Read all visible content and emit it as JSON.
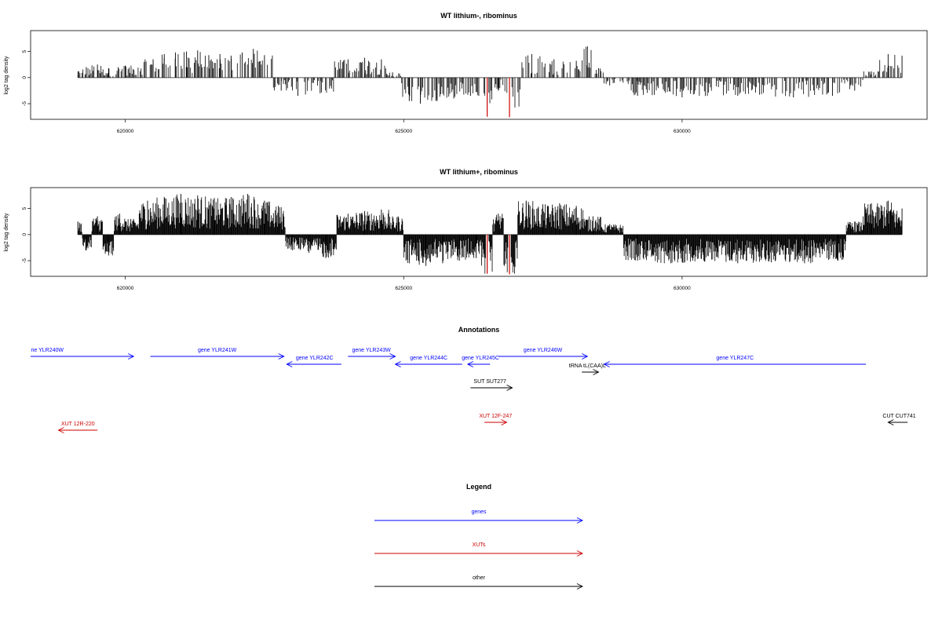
{
  "chart_data": [
    {
      "type": "bar",
      "title": "WT lithium-, ribominus",
      "xlabel": "",
      "ylabel": "log2 tag density",
      "xlim": [
        618300,
        634400
      ],
      "ylim": [
        -8,
        9
      ],
      "x_ticks": [
        620000,
        625000,
        630000
      ],
      "x_tick_labels": [
        "620000",
        "625000",
        "630000"
      ],
      "y_ticks": [
        -5,
        0,
        5
      ],
      "y_tick_labels": [
        "-5",
        "0",
        "5"
      ],
      "highlight_color": "#cc0000",
      "series": [
        {
          "x": [
            619150,
            619300,
            619500,
            619700,
            620000,
            620500,
            620700,
            620900,
            621100,
            621300,
            621500,
            621700,
            621900,
            622100,
            622300,
            622500,
            622800,
            623100,
            623500,
            624000,
            624300,
            624600,
            624800,
            625100,
            625300,
            625600,
            625900,
            626200,
            626500,
            626700,
            626900,
            627300,
            627700,
            628100,
            628300,
            628500,
            628700,
            629200,
            630000,
            631000,
            632000,
            632700,
            633100,
            633400,
            633700,
            633950
          ],
          "values": [
            1.2,
            2.0,
            2.5,
            1.8,
            2.3,
            3.5,
            4.5,
            4.8,
            5.0,
            5.2,
            4.3,
            4.5,
            4.2,
            4.8,
            5.5,
            4.3,
            -2.5,
            -3.5,
            -3.0,
            3.5,
            3.8,
            3.5,
            1.0,
            -4.5,
            -5.0,
            -4.5,
            -4.0,
            -3.5,
            -7.5,
            -2.5,
            -7.6,
            4.5,
            3.5,
            3.2,
            6.0,
            1.8,
            -1.5,
            -3.5,
            -3.8,
            -3.5,
            -3.8,
            -3.5,
            -2.5,
            1.2,
            4.5,
            4.2
          ],
          "highlight_x": [
            626500,
            626900
          ]
        }
      ]
    },
    {
      "type": "bar",
      "title": "WT lithium+, ribominus",
      "xlabel": "",
      "ylabel": "log2 tag density",
      "xlim": [
        618300,
        634400
      ],
      "ylim": [
        -8,
        9
      ],
      "x_ticks": [
        620000,
        625000,
        630000
      ],
      "x_tick_labels": [
        "620000",
        "625000",
        "630000"
      ],
      "y_ticks": [
        -5,
        0,
        5
      ],
      "y_tick_labels": [
        "-5",
        "0",
        "5"
      ],
      "highlight_color": "#cc0000",
      "series": [
        {
          "x": [
            619150,
            619300,
            619500,
            619700,
            619900,
            620100,
            620400,
            620700,
            621000,
            621300,
            621600,
            621900,
            622200,
            622500,
            622750,
            623000,
            623300,
            623600,
            624000,
            624300,
            624600,
            624900,
            625100,
            625400,
            625700,
            626000,
            626300,
            626500,
            626700,
            626900,
            627200,
            627500,
            627800,
            628100,
            628400,
            628700,
            629200,
            629800,
            630400,
            631000,
            631600,
            632200,
            632800,
            633100,
            633400,
            633700,
            633950
          ],
          "values": [
            2.5,
            -3.0,
            3.5,
            -4.0,
            4.0,
            3.0,
            6.5,
            7.2,
            7.8,
            7.5,
            7.0,
            7.2,
            7.8,
            6.5,
            5.5,
            -3.0,
            -3.5,
            -4.5,
            4.0,
            4.5,
            4.8,
            3.5,
            -5.5,
            -6.0,
            -5.5,
            -5.0,
            -4.5,
            -7.5,
            4.0,
            -7.6,
            6.5,
            5.8,
            6.0,
            5.5,
            3.5,
            2.0,
            -5.0,
            -5.5,
            -5.2,
            -5.5,
            -5.3,
            -5.5,
            -5.0,
            2.5,
            6.0,
            6.5,
            5.0
          ],
          "highlight_x": [
            626500,
            626900
          ]
        }
      ]
    }
  ],
  "annotations": {
    "title": "Annotations",
    "xlim": [
      618300,
      634400
    ],
    "features": [
      {
        "label": "ne YLR240W",
        "start": 618300,
        "end": 620150,
        "strand": "+",
        "row": 0,
        "color": "#0000ff",
        "label_x": 618600
      },
      {
        "label": "gene YLR241W",
        "start": 620450,
        "end": 622850,
        "strand": "+",
        "row": 0,
        "color": "#0000ff",
        "label_x": 621650
      },
      {
        "label": "gene YLR242C",
        "start": 622900,
        "end": 623880,
        "strand": "-",
        "row": 1,
        "color": "#0000ff",
        "label_x": 623400
      },
      {
        "label": "gene YLR243W",
        "start": 624000,
        "end": 624850,
        "strand": "+",
        "row": 0,
        "color": "#0000ff",
        "label_x": 624420
      },
      {
        "label": "gene YLR244C",
        "start": 624850,
        "end": 626050,
        "strand": "-",
        "row": 1,
        "color": "#0000ff",
        "label_x": 625450
      },
      {
        "label": "gene YLR245C",
        "start": 626150,
        "end": 626550,
        "strand": "-",
        "row": 1,
        "color": "#0000ff",
        "label_x": 626380
      },
      {
        "label": "gene YLR246W",
        "start": 626700,
        "end": 628300,
        "strand": "+",
        "row": 0,
        "color": "#0000ff",
        "label_x": 627500
      },
      {
        "label": "tRNA tL(CAA)L",
        "start": 628200,
        "end": 628500,
        "strand": "+",
        "row": 2,
        "color": "#000000",
        "label_x": 628300
      },
      {
        "label": "gene YLR247C",
        "start": 628600,
        "end": 633300,
        "strand": "-",
        "row": 1,
        "color": "#0000ff",
        "label_x": 630950
      },
      {
        "label": "SUT SUT277",
        "start": 626200,
        "end": 626950,
        "strand": "+",
        "row": 3,
        "color": "#000000",
        "label_x": 626550
      },
      {
        "label": "XUT 12F-247",
        "start": 626450,
        "end": 626850,
        "strand": "+",
        "row": 4,
        "color": "#cc0000",
        "label_x": 626650
      },
      {
        "label": "CUT CUT741",
        "start": 633700,
        "end": 634050,
        "strand": "-",
        "row": 4,
        "color": "#000000",
        "label_x": 633900
      },
      {
        "label": "XUT 12R-220",
        "start": 618800,
        "end": 619500,
        "strand": "-",
        "row": 5,
        "color": "#cc0000",
        "label_x": 619150
      }
    ]
  },
  "legend": {
    "title": "Legend",
    "items": [
      {
        "label": "genes",
        "color": "#0000ff"
      },
      {
        "label": "XUTs",
        "color": "#cc0000"
      },
      {
        "label": "other",
        "color": "#000000"
      }
    ]
  }
}
